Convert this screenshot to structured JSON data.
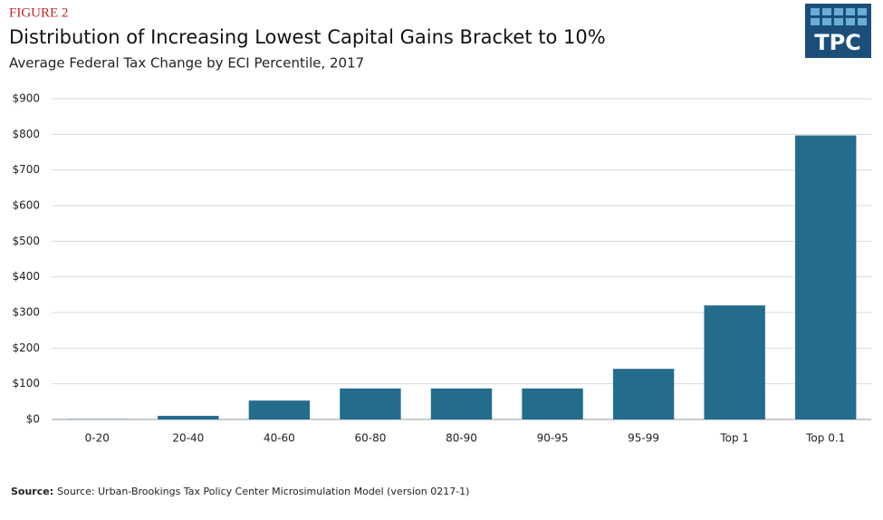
{
  "chart_data": {
    "type": "bar",
    "figure_label": "FIGURE 2",
    "title": "Distribution of Increasing Lowest Capital Gains Bracket to 10%",
    "subtitle": "Average Federal Tax Change by ECI Percentile, 2017",
    "logo": "TPC",
    "categories": [
      "0-20",
      "20-40",
      "40-60",
      "60-80",
      "80-90",
      "90-95",
      "95-99",
      "Top 1",
      "Top 0.1"
    ],
    "values": [
      1,
      10,
      53,
      87,
      87,
      87,
      142,
      320,
      797
    ],
    "color": "#246c8c",
    "ylim": [
      0,
      900
    ],
    "yticks": [
      {
        "value": 0,
        "label": "$0"
      },
      {
        "value": 100,
        "label": "$100"
      },
      {
        "value": 200,
        "label": "$200"
      },
      {
        "value": 300,
        "label": "$300"
      },
      {
        "value": 400,
        "label": "$400"
      },
      {
        "value": 500,
        "label": "$500"
      },
      {
        "value": 600,
        "label": "$600"
      },
      {
        "value": 700,
        "label": "$700"
      },
      {
        "value": 800,
        "label": "$800"
      },
      {
        "value": 900,
        "label": "$900"
      }
    ],
    "grid": true,
    "source_label": "Source:",
    "source": "Source:  Urban-Brookings Tax Policy Center Microsimulation Model (version 0217-1)"
  }
}
